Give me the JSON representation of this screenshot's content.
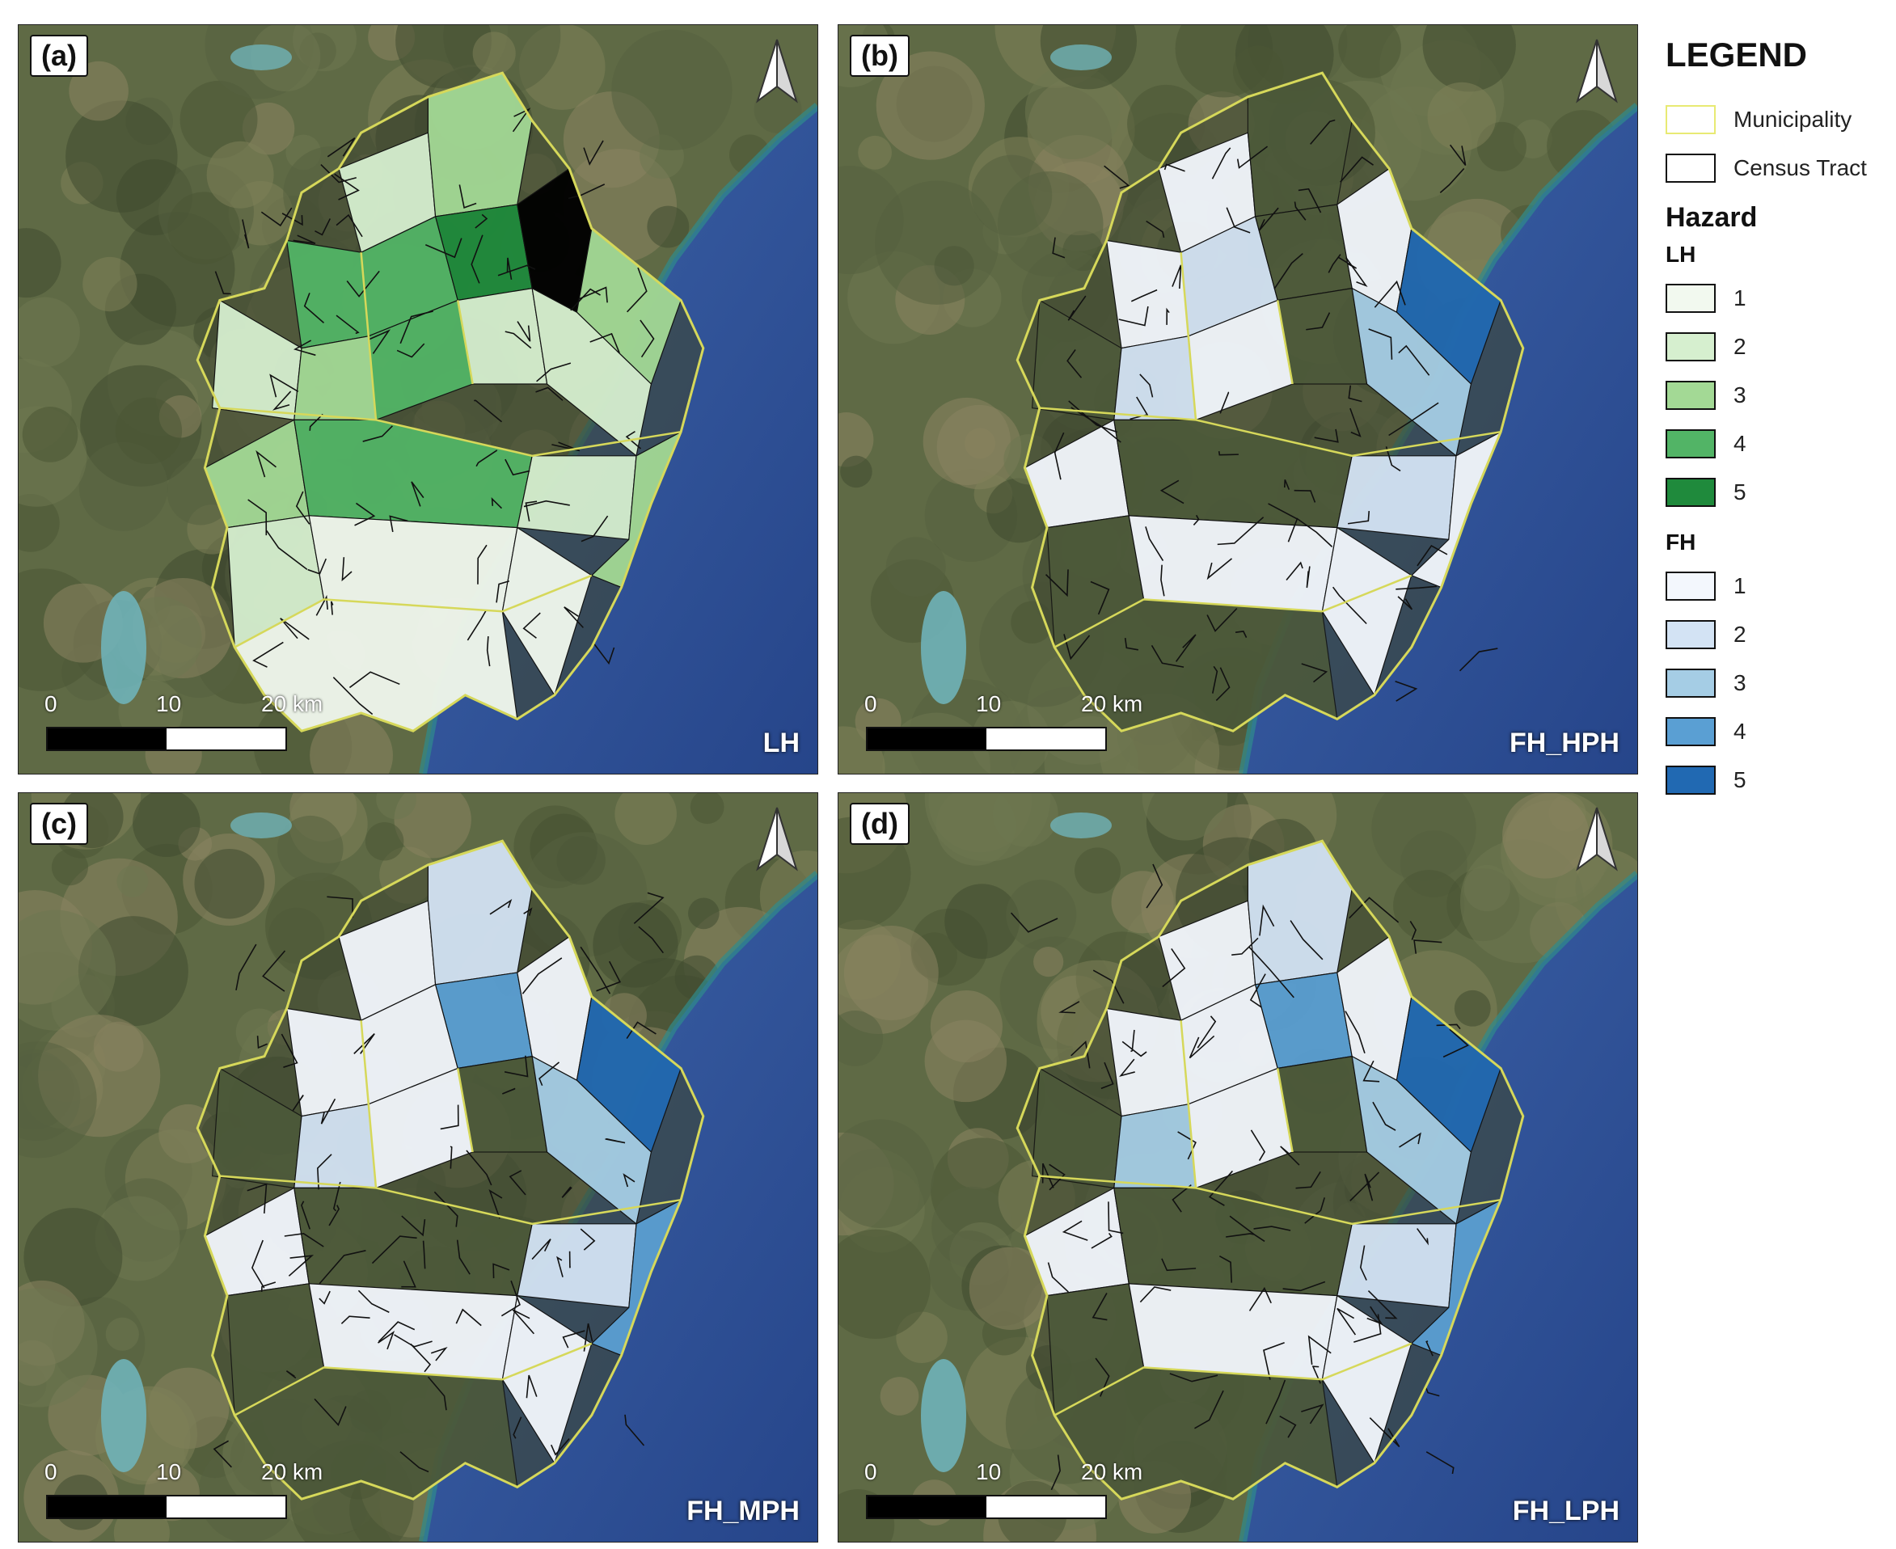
{
  "panels": [
    {
      "label": "(a)",
      "name": "LH",
      "scheme": "green"
    },
    {
      "label": "(b)",
      "name": "FH_HPH",
      "scheme": "blue-hph"
    },
    {
      "label": "(c)",
      "name": "FH_MPH",
      "scheme": "blue-mph"
    },
    {
      "label": "(d)",
      "name": "FH_LPH",
      "scheme": "blue-lph"
    }
  ],
  "scalebar": {
    "ticks": [
      "0",
      "10",
      "20 km"
    ]
  },
  "legend": {
    "title": "LEGEND",
    "boundaries": [
      {
        "label": "Municipality",
        "color": "#e8ea73"
      },
      {
        "label": "Census Tract",
        "color": "#111111"
      }
    ],
    "hazard_title": "Hazard",
    "lh": {
      "title": "LH",
      "classes": [
        {
          "label": "1",
          "color": "#f2f9ef"
        },
        {
          "label": "2",
          "color": "#d6efcf"
        },
        {
          "label": "3",
          "color": "#a3d995"
        },
        {
          "label": "4",
          "color": "#52b466"
        },
        {
          "label": "5",
          "color": "#1f8a3c"
        }
      ]
    },
    "fh": {
      "title": "FH",
      "classes": [
        {
          "label": "1",
          "color": "#f3f7fd"
        },
        {
          "label": "2",
          "color": "#d3e3f4"
        },
        {
          "label": "3",
          "color": "#a5cde5"
        },
        {
          "label": "4",
          "color": "#5a9fd3"
        },
        {
          "label": "5",
          "color": "#2169b2"
        }
      ]
    }
  }
}
